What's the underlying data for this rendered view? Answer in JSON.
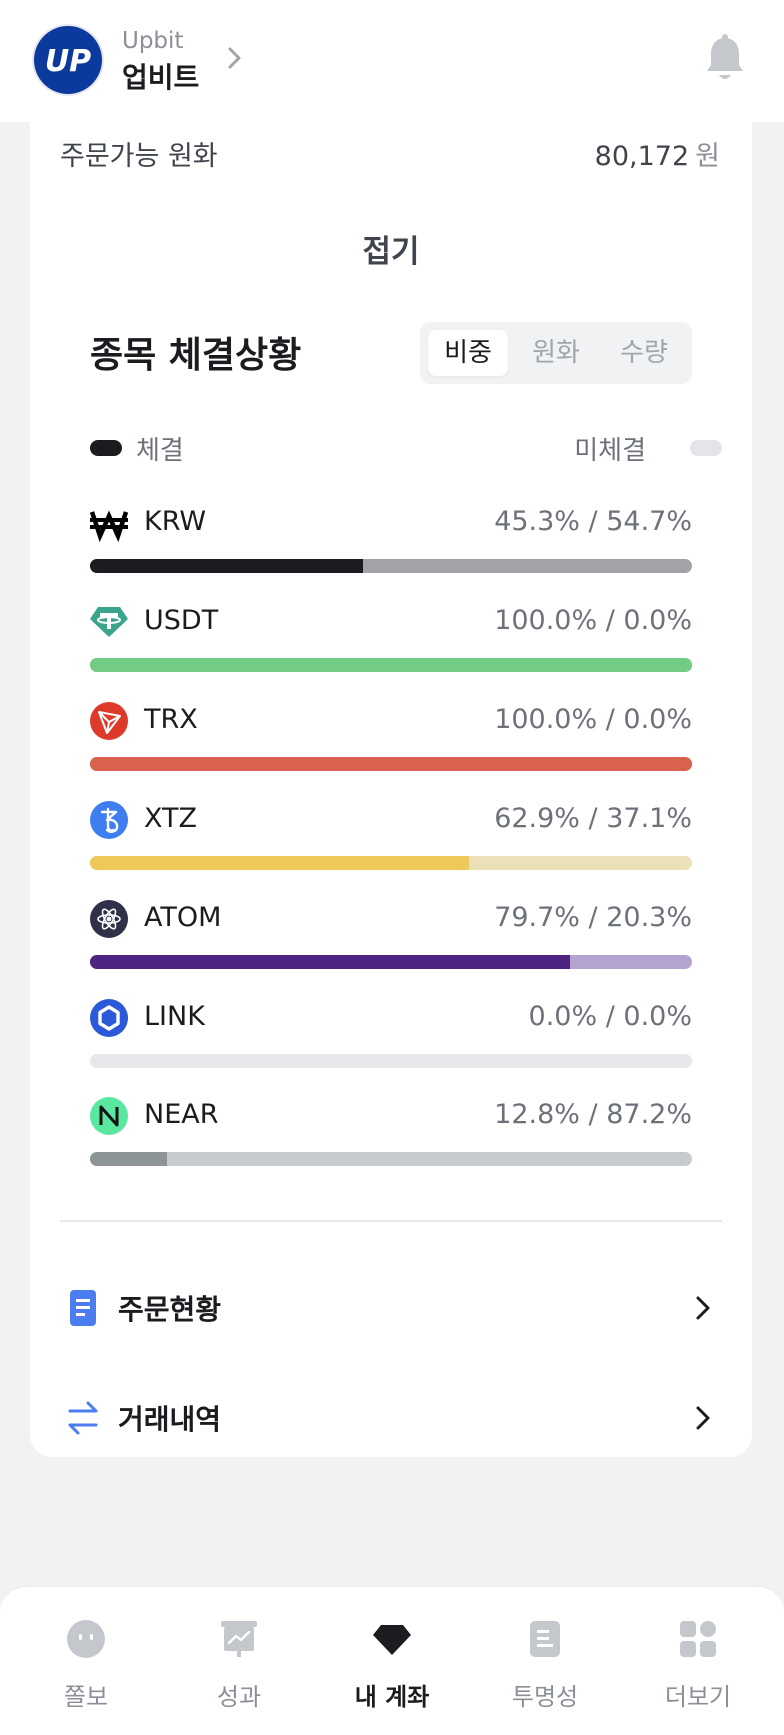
{
  "header": {
    "brand_en": "Upbit",
    "brand_ko": "업비트",
    "logo_text": "UP"
  },
  "account": {
    "available_label": "주문가능 원화",
    "available_value": "80,172",
    "available_unit": "원",
    "collapse_label": "접기"
  },
  "execution": {
    "title": "종목 체결상황",
    "tabs": [
      "비중",
      "원화",
      "수량"
    ],
    "active_tab": "비중",
    "legend_filled": "체결",
    "legend_unfilled": "미체결",
    "assets": [
      {
        "symbol": "KRW",
        "pct_text": "45.3% / 54.7%",
        "filled": 45.3,
        "unfilled": 54.7,
        "color": "#1a1c20",
        "track_color": "#a1a3a6",
        "icon": "won-icon"
      },
      {
        "symbol": "USDT",
        "pct_text": "100.0% / 0.0%",
        "filled": 100.0,
        "unfilled": 0.0,
        "color": "#72cc84",
        "track_color": "#72cc84",
        "icon": "tether-icon"
      },
      {
        "symbol": "TRX",
        "pct_text": "100.0% / 0.0%",
        "filled": 100.0,
        "unfilled": 0.0,
        "color": "#d9624f",
        "track_color": "#d9624f",
        "icon": "tron-icon"
      },
      {
        "symbol": "XTZ",
        "pct_text": "62.9% / 37.1%",
        "filled": 62.9,
        "unfilled": 37.1,
        "color": "#ecc95a",
        "track_color": "#ebe0b8",
        "icon": "tezos-icon"
      },
      {
        "symbol": "ATOM",
        "pct_text": "79.7% / 20.3%",
        "filled": 79.7,
        "unfilled": 20.3,
        "color": "#4e2483",
        "track_color": "#b4a3cf",
        "icon": "cosmos-icon"
      },
      {
        "symbol": "LINK",
        "pct_text": "0.0% / 0.0%",
        "filled": 0.0,
        "unfilled": 0.0,
        "color": "#e6e8eb",
        "track_color": "#e6e8eb",
        "icon": "chainlink-icon"
      },
      {
        "symbol": "NEAR",
        "pct_text": "12.8% / 87.2%",
        "filled": 12.8,
        "unfilled": 87.2,
        "color": "#8c9495",
        "track_color": "#c7cbce",
        "icon": "near-icon"
      }
    ]
  },
  "menu": [
    {
      "label": "주문현황",
      "icon": "document-icon"
    },
    {
      "label": "거래내역",
      "icon": "swap-arrows-icon"
    }
  ],
  "bottom_nav": [
    {
      "label": "쫄보",
      "icon": "face-icon",
      "active": false
    },
    {
      "label": "성과",
      "icon": "chart-board-icon",
      "active": false
    },
    {
      "label": "내 계좌",
      "icon": "gem-icon",
      "active": true
    },
    {
      "label": "투명성",
      "icon": "receipt-icon",
      "active": false
    },
    {
      "label": "더보기",
      "icon": "grid-icon",
      "active": false
    }
  ]
}
